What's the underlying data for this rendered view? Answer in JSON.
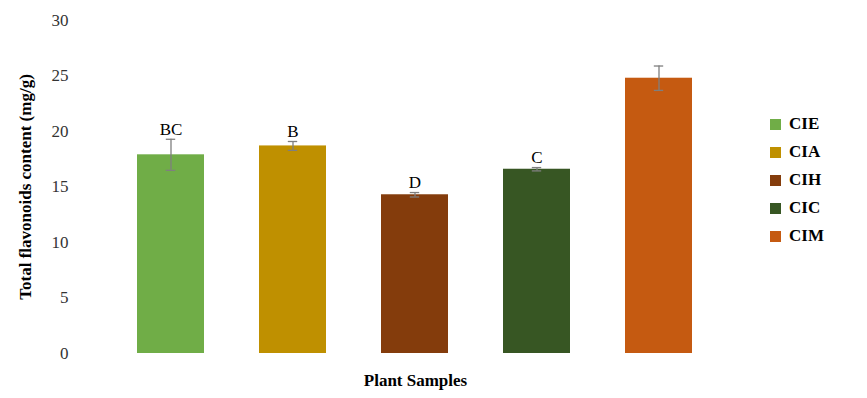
{
  "chart_data": {
    "type": "bar",
    "categories": [
      "CIE",
      "CIA",
      "CIH",
      "CIC",
      "CIM"
    ],
    "values": [
      17.9,
      18.7,
      14.3,
      16.6,
      24.8
    ],
    "errors": [
      1.4,
      0.4,
      0.2,
      0.15,
      1.1
    ],
    "letters": [
      "BC",
      "B",
      "D",
      "C",
      null
    ],
    "colors": [
      "#70ad47",
      "#bf9000",
      "#843c0c",
      "#375623",
      "#c55a11"
    ],
    "x_label": "Plant Samples",
    "y_label": "Total flavonoids content (mg/g)",
    "ylim": [
      0,
      30
    ],
    "yticks": [
      0,
      5,
      10,
      15,
      20,
      25,
      30
    ],
    "grid": false,
    "legend": "right",
    "tick_labels": "y"
  }
}
